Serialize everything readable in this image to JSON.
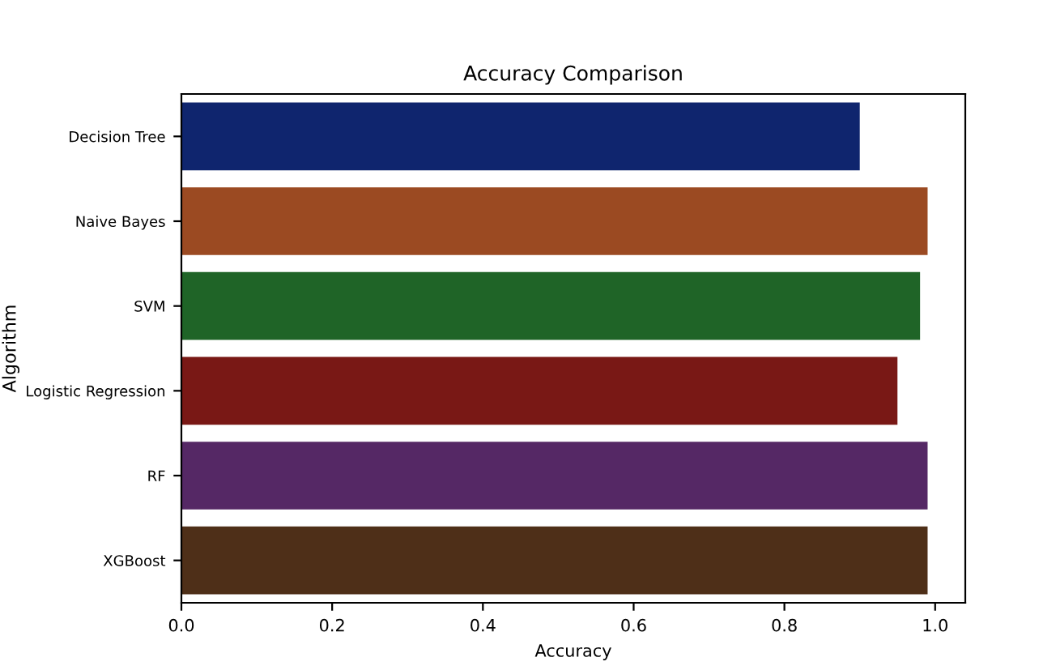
{
  "chart_data": {
    "type": "bar",
    "orientation": "horizontal",
    "title": "Accuracy Comparison",
    "xlabel": "Accuracy",
    "ylabel": "Algorithm",
    "categories": [
      "Decision Tree",
      "Naive Bayes",
      "SVM",
      "Logistic Regression",
      "RF",
      "XGBoost"
    ],
    "values": [
      0.9,
      0.99,
      0.98,
      0.95,
      0.99,
      0.99
    ],
    "colors": [
      "#0f256e",
      "#9b4a22",
      "#1f6427",
      "#791815",
      "#552865",
      "#4e2f18"
    ],
    "xlim": [
      0,
      1.04
    ],
    "xticks": [
      {
        "value": 0,
        "label": "0.0"
      },
      0.2,
      0.4,
      0.6,
      0.8,
      {
        "value": 1,
        "label": "1.0"
      }
    ],
    "grid": false,
    "legend": false
  }
}
